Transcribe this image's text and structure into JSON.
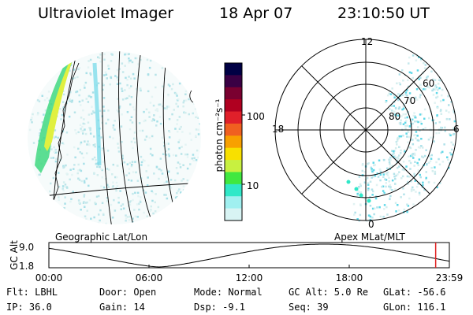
{
  "header": {
    "instrument": "Ultraviolet Imager",
    "date": "18 Apr 07",
    "time": "23:10:50 UT"
  },
  "geo_panel": {
    "label": "Geographic Lat/Lon"
  },
  "colorbar": {
    "unit_label": "photon cm⁻²s⁻¹",
    "tick_100": "100",
    "tick_10": "10",
    "colors": [
      "#000044",
      "#3a0044",
      "#7a0030",
      "#b00020",
      "#e0202a",
      "#f06020",
      "#f8a000",
      "#f8e000",
      "#c8f040",
      "#40e840",
      "#30e8c8",
      "#a0f0f0",
      "#d8f4f4"
    ]
  },
  "polar_panel": {
    "label": "Apex MLat/MLT",
    "mlt_12": "12",
    "mlt_18": "18",
    "mlt_6": "6",
    "mlt_0": "0",
    "lat_60": "60",
    "lat_70": "70",
    "lat_80": "80"
  },
  "altitude_plot": {
    "ylabel": "GC Alt",
    "y_top": "9.0",
    "y_bottom": "1.8",
    "x_ticks": [
      "00:00",
      "06:00",
      "12:00",
      "18:00",
      "23:59"
    ],
    "current_time_marker": 23.18
  },
  "info": {
    "flt": "Flt: LBHL",
    "ip": "IP: 36.0",
    "door": "Door: Open",
    "gain": "Gain: 14",
    "mode": "Mode: Normal",
    "dsp": "Dsp:   -9.1",
    "gc_alt": "GC Alt: 5.0 Re",
    "seq": "Seq: 39",
    "glat": "GLat: -56.6",
    "glon": "GLon: 116.1"
  }
}
